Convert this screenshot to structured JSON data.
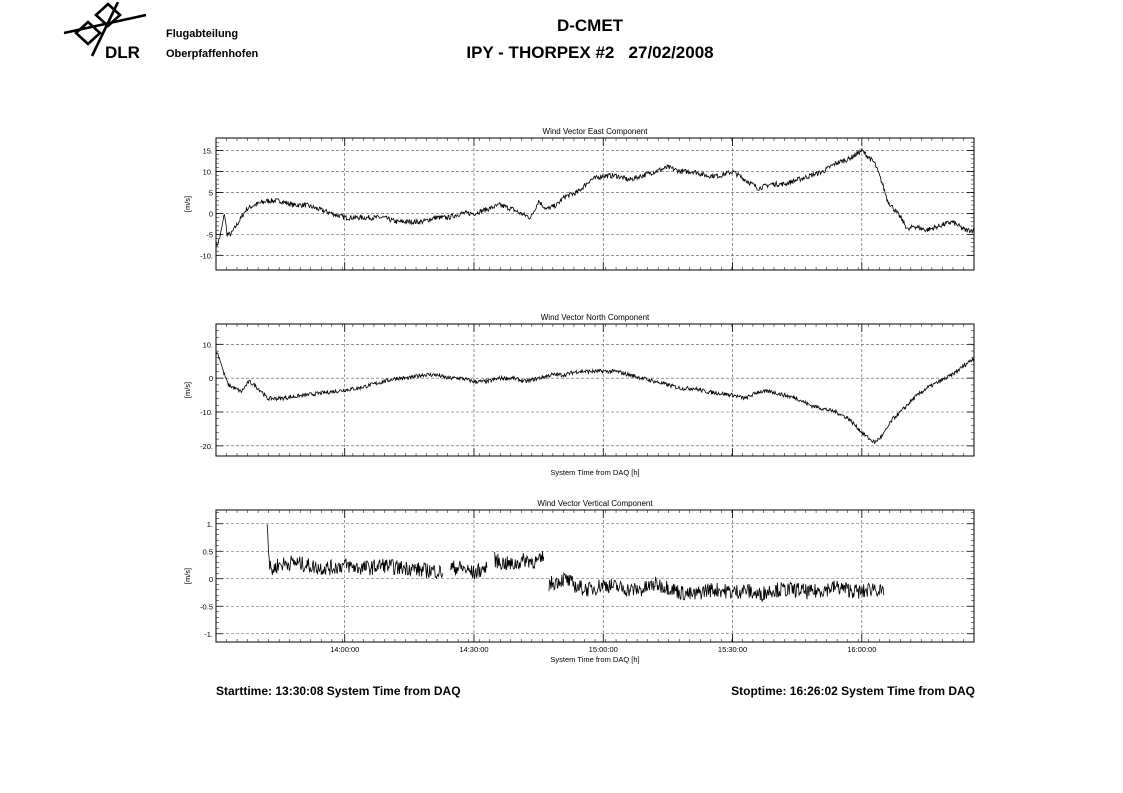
{
  "header": {
    "logo_text": "DLR",
    "org_line1": "Flugabteilung",
    "org_line2": "Oberpfaffenhofen",
    "title": "D-CMET",
    "subtitle": "IPY - THORPEX #2   27/02/2008"
  },
  "footer": {
    "start": "Starttime: 13:30:08 System Time from DAQ",
    "stop": "Stoptime: 16:26:02 System Time from DAQ"
  },
  "colors": {
    "line": "#000000",
    "grid": "#555555"
  },
  "chart_data": [
    {
      "type": "line",
      "title": "Wind Vector East Component",
      "ylabel": "[m/s]",
      "xlabel": "",
      "xlim": [
        13.5022,
        16.4339
      ],
      "ylim": [
        -13.5,
        18
      ],
      "yticks": [
        -10,
        -5,
        0,
        5,
        10,
        15
      ],
      "ytick_labels": [
        "-10.",
        "-5",
        "0",
        "5",
        "10.",
        "15."
      ],
      "xticks": [
        14.0,
        14.5,
        15.0,
        15.5,
        16.0
      ],
      "xtick_labels": [],
      "grid": true,
      "noise": 0.6,
      "x": [
        13.502,
        13.51,
        13.52,
        13.535,
        13.545,
        13.56,
        13.58,
        13.62,
        13.65,
        13.7,
        13.75,
        13.8,
        13.85,
        13.9,
        13.95,
        14.0,
        14.05,
        14.1,
        14.15,
        14.2,
        14.25,
        14.3,
        14.35,
        14.4,
        14.45,
        14.5,
        14.55,
        14.6,
        14.65,
        14.68,
        14.72,
        14.75,
        14.78,
        14.82,
        14.85,
        14.9,
        14.95,
        15.0,
        15.05,
        15.1,
        15.15,
        15.2,
        15.25,
        15.3,
        15.35,
        15.4,
        15.45,
        15.5,
        15.55,
        15.6,
        15.65,
        15.7,
        15.75,
        15.8,
        15.85,
        15.9,
        15.95,
        16.0,
        16.05,
        16.08,
        16.1,
        16.15,
        16.18,
        16.2,
        16.25,
        16.3,
        16.35,
        16.4,
        16.434
      ],
      "y": [
        -8,
        -7,
        -5,
        0,
        -5,
        -5,
        -3,
        1,
        2,
        3,
        3,
        2,
        2,
        1,
        0,
        -1,
        -1,
        -1,
        -1,
        -2,
        -2,
        -2,
        -1,
        -1,
        0,
        0,
        1,
        2,
        1,
        0,
        -1,
        3,
        1,
        2,
        4,
        5,
        8,
        9,
        9,
        8,
        9,
        10,
        11,
        10,
        10,
        9,
        9,
        10,
        8,
        6,
        7,
        7,
        8,
        9,
        10,
        12,
        13,
        15,
        12,
        7,
        3,
        -1,
        -4,
        -3,
        -4,
        -3,
        -2,
        -4,
        -4
      ]
    },
    {
      "type": "line",
      "title": "Wind Vector North Component",
      "ylabel": "[m/s]",
      "xlabel": "System Time from DAQ [h]",
      "xlim": [
        13.5022,
        16.4339
      ],
      "ylim": [
        -23,
        16
      ],
      "yticks": [
        -20,
        -10,
        0,
        10
      ],
      "ytick_labels": [
        "-20.",
        "-10.",
        "0",
        "10."
      ],
      "xticks": [
        14.0,
        14.5,
        15.0,
        15.5,
        16.0
      ],
      "xtick_labels": [],
      "grid": true,
      "noise": 0.6,
      "x": [
        13.502,
        13.51,
        13.52,
        13.53,
        13.55,
        13.6,
        13.63,
        13.65,
        13.68,
        13.7,
        13.75,
        13.8,
        13.85,
        13.9,
        13.95,
        14.0,
        14.05,
        14.1,
        14.15,
        14.2,
        14.25,
        14.3,
        14.35,
        14.4,
        14.45,
        14.5,
        14.55,
        14.6,
        14.65,
        14.7,
        14.75,
        14.8,
        14.85,
        14.9,
        14.95,
        15.0,
        15.05,
        15.1,
        15.15,
        15.2,
        15.25,
        15.3,
        15.35,
        15.4,
        15.45,
        15.5,
        15.55,
        15.6,
        15.65,
        15.7,
        15.75,
        15.8,
        15.85,
        15.9,
        15.95,
        16.0,
        16.03,
        16.05,
        16.08,
        16.12,
        16.15,
        16.2,
        16.25,
        16.3,
        16.35,
        16.4,
        16.434
      ],
      "y": [
        8,
        7,
        5,
        2,
        -2,
        -4,
        -1,
        -2,
        -4,
        -6,
        -6,
        -5.5,
        -5,
        -4.5,
        -4,
        -3.5,
        -3,
        -2,
        -1,
        0,
        0,
        1,
        1,
        0,
        0,
        -1,
        -1,
        0,
        0,
        -1,
        0,
        1,
        1,
        2,
        2,
        2,
        2,
        1,
        0,
        -1,
        -2,
        -3,
        -3,
        -4,
        -4.5,
        -5,
        -6,
        -4,
        -4,
        -5,
        -6,
        -8,
        -9,
        -10,
        -12,
        -16,
        -18,
        -19,
        -17,
        -12,
        -10,
        -6,
        -3,
        -1,
        1,
        4,
        6
      ]
    },
    {
      "type": "line",
      "title": "Wind Vector Vertical Component",
      "ylabel": "[m/s]",
      "xlabel": "System Time from DAQ [h]",
      "xlim": [
        13.5022,
        16.4339
      ],
      "ylim": [
        -1.15,
        1.25
      ],
      "yticks": [
        -1,
        -0.5,
        0,
        0.5,
        1
      ],
      "ytick_labels": [
        "-1.",
        "-0.5",
        "0",
        "0.5",
        "1."
      ],
      "xticks": [
        14.0,
        14.5,
        15.0,
        15.5,
        16.0
      ],
      "xtick_labels": [
        "14:00:00",
        "14:30:00",
        "15:00:00",
        "15:30:00",
        "16:00:00"
      ],
      "grid": true,
      "noise": 0.14,
      "x": [
        13.7,
        13.705,
        13.71,
        13.72,
        13.74,
        13.8,
        13.85,
        13.9,
        13.95,
        14.0,
        14.05,
        14.1,
        14.15,
        14.2,
        14.25,
        14.3,
        14.35,
        14.38,
        null,
        14.41,
        14.45,
        14.5,
        14.52,
        14.55,
        null,
        14.58,
        14.6,
        14.65,
        14.7,
        14.75,
        14.77,
        null,
        14.79,
        14.82,
        14.85,
        14.9,
        14.95,
        15.0,
        15.05,
        15.1,
        15.15,
        15.2,
        15.25,
        15.3,
        15.35,
        15.4,
        15.45,
        15.5,
        15.55,
        15.6,
        15.65,
        15.7,
        15.75,
        15.8,
        15.85,
        15.9,
        15.95,
        16.0,
        16.05,
        16.085
      ],
      "y": [
        1.05,
        0.6,
        0.2,
        0.15,
        0.25,
        0.3,
        0.25,
        0.2,
        0.2,
        0.25,
        0.2,
        0.2,
        0.25,
        0.2,
        0.2,
        0.15,
        0.15,
        0.1,
        null,
        0.2,
        0.2,
        0.1,
        0.15,
        0.2,
        null,
        0.35,
        0.3,
        0.25,
        0.35,
        0.3,
        0.4,
        null,
        -0.1,
        -0.05,
        0.0,
        -0.15,
        -0.2,
        -0.1,
        -0.15,
        -0.2,
        -0.2,
        -0.1,
        -0.15,
        -0.25,
        -0.3,
        -0.2,
        -0.2,
        -0.25,
        -0.2,
        -0.3,
        -0.2,
        -0.2,
        -0.2,
        -0.25,
        -0.2,
        -0.15,
        -0.2,
        -0.25,
        -0.15,
        -0.3
      ]
    }
  ]
}
